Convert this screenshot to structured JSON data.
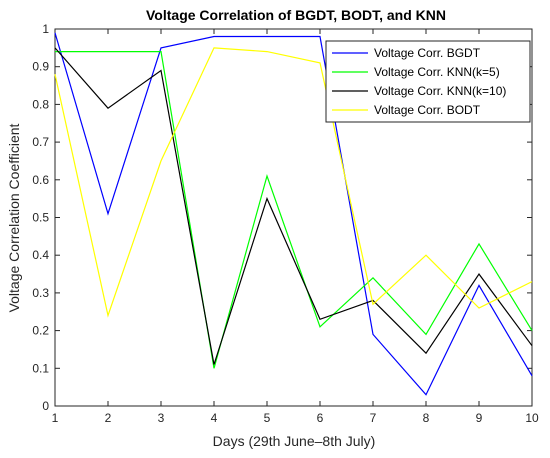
{
  "chart_data": {
    "type": "line",
    "title": "Voltage Correlation of BGDT, BODT, and KNN",
    "xlabel": "Days (29th June–8th July)",
    "ylabel": "Voltage Correlation Coefficient",
    "x": [
      1,
      2,
      3,
      4,
      5,
      6,
      7,
      8,
      9,
      10
    ],
    "xlim": [
      1,
      10
    ],
    "ylim": [
      0,
      1
    ],
    "xticks": [
      "1",
      "2",
      "3",
      "4",
      "5",
      "6",
      "7",
      "8",
      "9",
      "10"
    ],
    "yticks": [
      "0",
      "0.1",
      "0.2",
      "0.3",
      "0.4",
      "0.5",
      "0.6",
      "0.7",
      "0.8",
      "0.9",
      "1"
    ],
    "grid": false,
    "legend_position": "top-right",
    "series": [
      {
        "name": "Voltage Corr. BGDT",
        "color": "#0000ff",
        "values": [
          0.99,
          0.51,
          0.95,
          0.98,
          0.98,
          0.98,
          0.19,
          0.03,
          0.32,
          0.08
        ]
      },
      {
        "name": "Voltage Corr. KNN(k=5)",
        "color": "#00ff00",
        "values": [
          0.94,
          0.94,
          0.94,
          0.1,
          0.61,
          0.21,
          0.34,
          0.19,
          0.43,
          0.2
        ]
      },
      {
        "name": "Voltage Corr. KNN(k=10)",
        "color": "#000000",
        "values": [
          0.95,
          0.79,
          0.89,
          0.11,
          0.55,
          0.23,
          0.28,
          0.14,
          0.35,
          0.16
        ]
      },
      {
        "name": "Voltage Corr. BODT",
        "color": "#ffff00",
        "values": [
          0.88,
          0.24,
          0.65,
          0.95,
          0.94,
          0.91,
          0.27,
          0.4,
          0.26,
          0.33
        ]
      }
    ]
  }
}
